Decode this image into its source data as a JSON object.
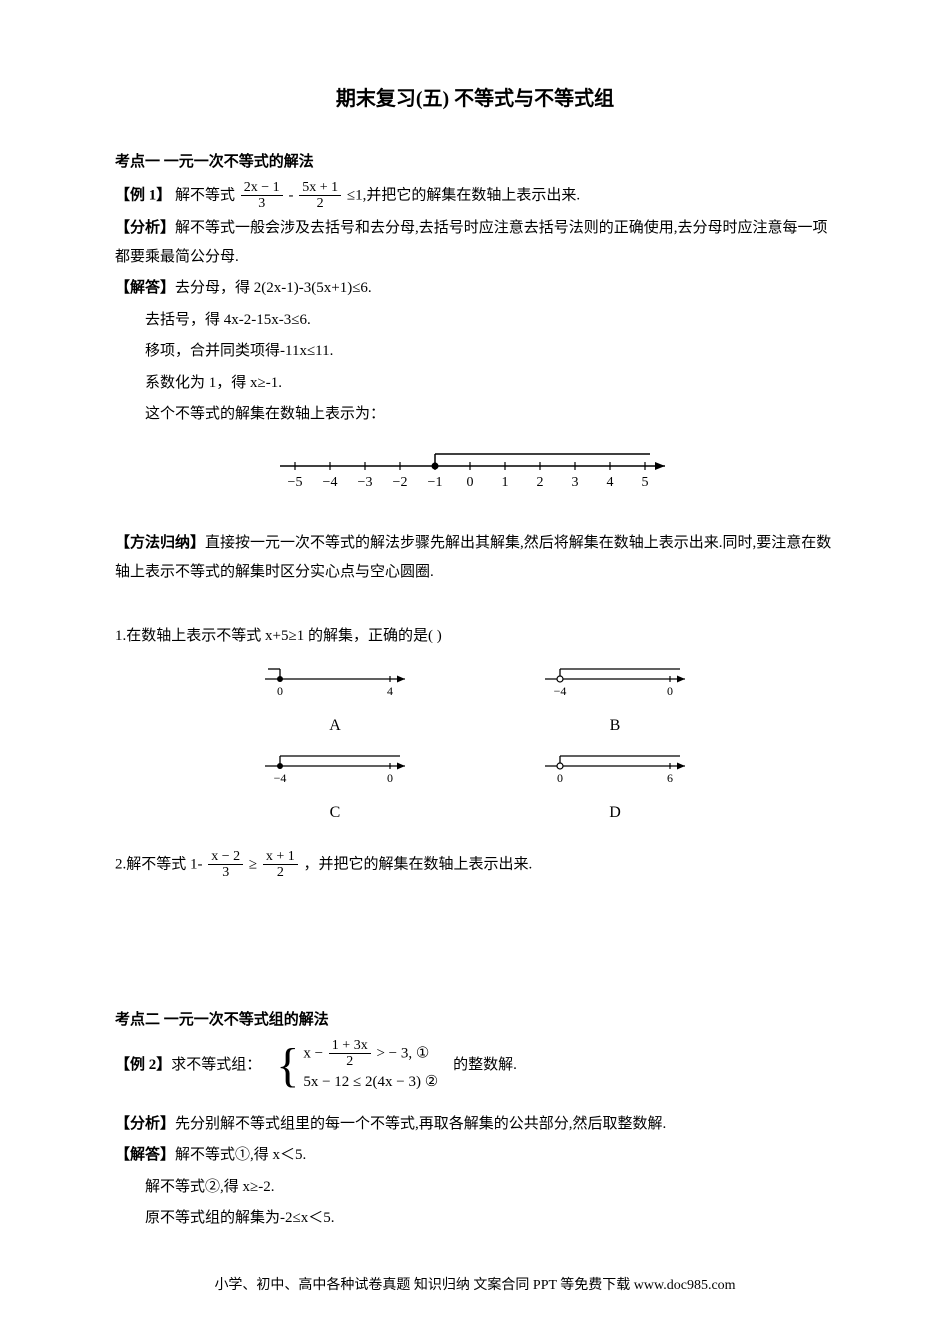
{
  "title": "期末复习(五) 不等式与不等式组",
  "sec1_head": "考点一  一元一次不等式的解法",
  "ex1_prefix": "【例 1】",
  "ex1_text_a": "解不等式",
  "ex1_frac1_num": "2x − 1",
  "ex1_frac1_den": "3",
  "ex1_minus": "-",
  "ex1_frac2_num": "5x + 1",
  "ex1_frac2_den": "2",
  "ex1_text_b": "≤1,并把它的解集在数轴上表示出来.",
  "analysis_label": "【分析】",
  "ex1_analysis": "解不等式一般会涉及去括号和去分母,去括号时应注意去括号法则的正确使用,去分母时应注意每一项都要乘最简公分母.",
  "solve_label": "【解答】",
  "ex1_s1": "去分母，得 2(2x-1)-3(5x+1)≤6.",
  "ex1_s2": "去括号，得 4x-2-15x-3≤6.",
  "ex1_s3": "移项，合并同类项得-11x≤11.",
  "ex1_s4": "系数化为 1，得 x≥-1.",
  "ex1_s5": "这个不等式的解集在数轴上表示为：",
  "numberline": {
    "ticks": [
      "−5",
      "−4",
      "−3",
      "−2",
      "−1",
      "0",
      "1",
      "2",
      "3",
      "4",
      "5"
    ],
    "solid_x": -1
  },
  "method_label": "【方法归纳】",
  "ex1_method": "直接按一元一次不等式的解法步骤先解出其解集,然后将解集在数轴上表示出来.同时,要注意在数轴上表示不等式的解集时区分实心点与空心圆圈.",
  "q1": "1.在数轴上表示不等式 x+5≥1 的解集，正确的是(    )",
  "choices": {
    "A": {
      "ticks": [
        "0",
        "4"
      ],
      "closed_at": "0",
      "dir": "left"
    },
    "B": {
      "ticks": [
        "−4",
        "0"
      ],
      "open_at": "−4",
      "dir": "right"
    },
    "C": {
      "ticks": [
        "−4",
        "0"
      ],
      "closed_at": "−4",
      "dir": "right"
    },
    "D": {
      "ticks": [
        "0",
        "6"
      ],
      "open_at": "0",
      "dir": "right"
    }
  },
  "q2_prefix": "2.解不等式 1-",
  "q2_frac1_num": "x − 2",
  "q2_frac1_den": "3",
  "q2_mid": " ≥ ",
  "q2_frac2_num": "x + 1",
  "q2_frac2_den": "2",
  "q2_suffix": "，并把它的解集在数轴上表示出来.",
  "sec2_head": "考点二  一元一次不等式组的解法",
  "ex2_prefix": "【例 2】",
  "ex2_text_a": "求不等式组：",
  "ex2_line1_a": "x −",
  "ex2_line1_frac_num": "1 + 3x",
  "ex2_line1_frac_den": "2",
  "ex2_line1_b": " > − 3, ①",
  "ex2_line2": "5x − 12 ≤ 2(4x − 3) ②",
  "ex2_text_b": "的整数解.",
  "ex2_analysis": "先分别解不等式组里的每一个不等式,再取各解集的公共部分,然后取整数解.",
  "ex2_s1": "解不等式①,得 x＜5.",
  "ex2_s2": "解不等式②,得 x≥-2.",
  "ex2_s3": "原不等式组的解集为-2≤x＜5.",
  "footer": "小学、初中、高中各种试卷真题 知识归纳 文案合同 PPT 等免费下载   www.doc985.com"
}
